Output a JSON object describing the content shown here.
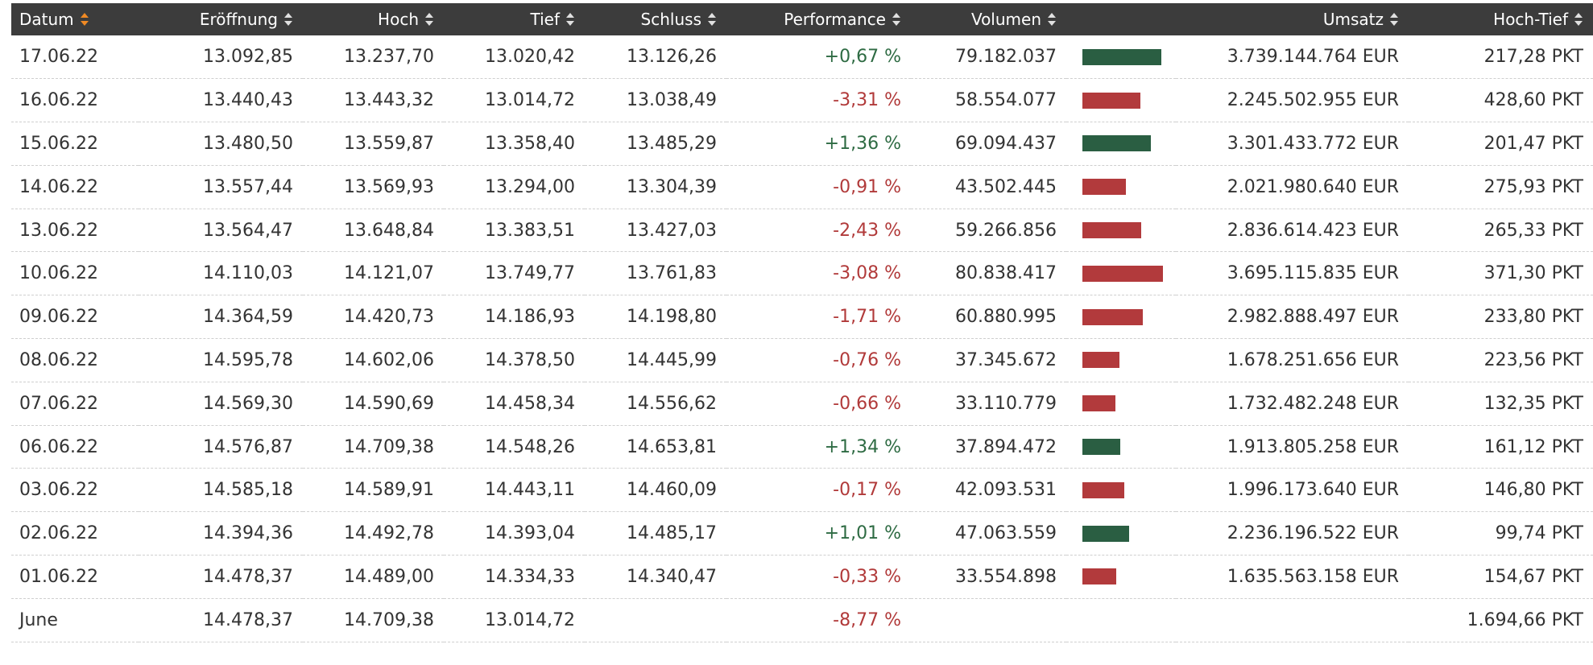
{
  "colors": {
    "header_bg": "#3c3c3c",
    "header_text": "#ffffff",
    "sort_active": "#f08a24",
    "positive": "#2e6b43",
    "negative": "#b13a3a",
    "bar_positive": "#2a5e42",
    "bar_negative": "#b23a3c"
  },
  "table": {
    "headers": {
      "datum": "Datum",
      "eroeffnung": "Eröffnung",
      "hoch": "Hoch",
      "tief": "Tief",
      "schluss": "Schluss",
      "performance": "Performance",
      "volumen": "Volumen",
      "umsatz": "Umsatz",
      "hoch_tief": "Hoch-Tief"
    },
    "sorted_column": "datum",
    "max_volume": 80838417,
    "rows": [
      {
        "datum": "17.06.22",
        "eroeffnung": "13.092,85",
        "hoch": "13.237,70",
        "tief": "13.020,42",
        "schluss": "13.126,26",
        "performance": "+0,67 %",
        "trend": "pos",
        "volumen": "79.182.037",
        "volume_value": 79182037,
        "umsatz": "3.739.144.764 EUR",
        "hoch_tief": "217,28 PKT"
      },
      {
        "datum": "16.06.22",
        "eroeffnung": "13.440,43",
        "hoch": "13.443,32",
        "tief": "13.014,72",
        "schluss": "13.038,49",
        "performance": "-3,31 %",
        "trend": "neg",
        "volumen": "58.554.077",
        "volume_value": 58554077,
        "umsatz": "2.245.502.955 EUR",
        "hoch_tief": "428,60 PKT"
      },
      {
        "datum": "15.06.22",
        "eroeffnung": "13.480,50",
        "hoch": "13.559,87",
        "tief": "13.358,40",
        "schluss": "13.485,29",
        "performance": "+1,36 %",
        "trend": "pos",
        "volumen": "69.094.437",
        "volume_value": 69094437,
        "umsatz": "3.301.433.772 EUR",
        "hoch_tief": "201,47 PKT"
      },
      {
        "datum": "14.06.22",
        "eroeffnung": "13.557,44",
        "hoch": "13.569,93",
        "tief": "13.294,00",
        "schluss": "13.304,39",
        "performance": "-0,91 %",
        "trend": "neg",
        "volumen": "43.502.445",
        "volume_value": 43502445,
        "umsatz": "2.021.980.640 EUR",
        "hoch_tief": "275,93 PKT"
      },
      {
        "datum": "13.06.22",
        "eroeffnung": "13.564,47",
        "hoch": "13.648,84",
        "tief": "13.383,51",
        "schluss": "13.427,03",
        "performance": "-2,43 %",
        "trend": "neg",
        "volumen": "59.266.856",
        "volume_value": 59266856,
        "umsatz": "2.836.614.423 EUR",
        "hoch_tief": "265,33 PKT"
      },
      {
        "datum": "10.06.22",
        "eroeffnung": "14.110,03",
        "hoch": "14.121,07",
        "tief": "13.749,77",
        "schluss": "13.761,83",
        "performance": "-3,08 %",
        "trend": "neg",
        "volumen": "80.838.417",
        "volume_value": 80838417,
        "umsatz": "3.695.115.835 EUR",
        "hoch_tief": "371,30 PKT"
      },
      {
        "datum": "09.06.22",
        "eroeffnung": "14.364,59",
        "hoch": "14.420,73",
        "tief": "14.186,93",
        "schluss": "14.198,80",
        "performance": "-1,71 %",
        "trend": "neg",
        "volumen": "60.880.995",
        "volume_value": 60880995,
        "umsatz": "2.982.888.497 EUR",
        "hoch_tief": "233,80 PKT"
      },
      {
        "datum": "08.06.22",
        "eroeffnung": "14.595,78",
        "hoch": "14.602,06",
        "tief": "14.378,50",
        "schluss": "14.445,99",
        "performance": "-0,76 %",
        "trend": "neg",
        "volumen": "37.345.672",
        "volume_value": 37345672,
        "umsatz": "1.678.251.656 EUR",
        "hoch_tief": "223,56 PKT"
      },
      {
        "datum": "07.06.22",
        "eroeffnung": "14.569,30",
        "hoch": "14.590,69",
        "tief": "14.458,34",
        "schluss": "14.556,62",
        "performance": "-0,66 %",
        "trend": "neg",
        "volumen": "33.110.779",
        "volume_value": 33110779,
        "umsatz": "1.732.482.248 EUR",
        "hoch_tief": "132,35 PKT"
      },
      {
        "datum": "06.06.22",
        "eroeffnung": "14.576,87",
        "hoch": "14.709,38",
        "tief": "14.548,26",
        "schluss": "14.653,81",
        "performance": "+1,34 %",
        "trend": "pos",
        "volumen": "37.894.472",
        "volume_value": 37894472,
        "umsatz": "1.913.805.258 EUR",
        "hoch_tief": "161,12 PKT"
      },
      {
        "datum": "03.06.22",
        "eroeffnung": "14.585,18",
        "hoch": "14.589,91",
        "tief": "14.443,11",
        "schluss": "14.460,09",
        "performance": "-0,17 %",
        "trend": "neg",
        "volumen": "42.093.531",
        "volume_value": 42093531,
        "umsatz": "1.996.173.640 EUR",
        "hoch_tief": "146,80 PKT"
      },
      {
        "datum": "02.06.22",
        "eroeffnung": "14.394,36",
        "hoch": "14.492,78",
        "tief": "14.393,04",
        "schluss": "14.485,17",
        "performance": "+1,01 %",
        "trend": "pos",
        "volumen": "47.063.559",
        "volume_value": 47063559,
        "umsatz": "2.236.196.522 EUR",
        "hoch_tief": "99,74 PKT"
      },
      {
        "datum": "01.06.22",
        "eroeffnung": "14.478,37",
        "hoch": "14.489,00",
        "tief": "14.334,33",
        "schluss": "14.340,47",
        "performance": "-0,33 %",
        "trend": "neg",
        "volumen": "33.554.898",
        "volume_value": 33554898,
        "umsatz": "1.635.563.158 EUR",
        "hoch_tief": "154,67 PKT"
      }
    ],
    "summary": {
      "datum": "June",
      "eroeffnung": "14.478,37",
      "hoch": "14.709,38",
      "tief": "13.014,72",
      "schluss": "",
      "performance": "-8,77 %",
      "trend": "neg",
      "volumen": "",
      "umsatz": "",
      "hoch_tief": "1.694,66 PKT"
    }
  }
}
